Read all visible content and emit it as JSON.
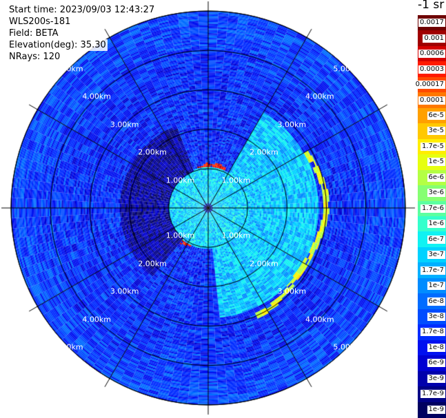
{
  "info": {
    "start_time": "Start time: 2023/09/03 12:43:27",
    "instrument": "WLS200s-181",
    "field": "Field: BETA",
    "elevation": "Elevation(deg): 35.30",
    "nrays": "NRays: 120"
  },
  "colorbar": {
    "unit": "-1 sr",
    "labels": [
      "0.0017",
      "0.001",
      "0.0006",
      "0.0003",
      "0.00017",
      "0.0001",
      "6e-5",
      "3e-5",
      "1.7e-5",
      "1e-5",
      "6e-6",
      "3e-6",
      "1.7e-6",
      "1e-6",
      "6e-7",
      "3e-7",
      "1.7e-7",
      "1e-7",
      "6e-8",
      "3e-8",
      "1.7e-8",
      "1e-8",
      "6e-9",
      "3e-9",
      "1.7e-9",
      "1e-9"
    ],
    "colors": [
      "#6e0000",
      "#a00000",
      "#d40000",
      "#ff1a00",
      "#ff4a00",
      "#ff7800",
      "#ffa000",
      "#ffc800",
      "#ffee00",
      "#e6ff10",
      "#b4ff44",
      "#86ff72",
      "#5cffa0",
      "#34ffcc",
      "#10f2f2",
      "#00d2ff",
      "#00b0ff",
      "#008cff",
      "#006cff",
      "#004cff",
      "#002cff",
      "#0010f0",
      "#0000d2",
      "#0000ac",
      "#000086",
      "#000060"
    ]
  },
  "chart_data": {
    "type": "heatmap",
    "projection": "polar",
    "field": "BETA",
    "elevation_deg": 35.3,
    "nrays": 120,
    "range_rings": [
      {
        "range_km": 1.0,
        "label": "1.00km"
      },
      {
        "range_km": 2.0,
        "label": "2.00km"
      },
      {
        "range_km": 3.0,
        "label": "3.00km"
      },
      {
        "range_km": 4.0,
        "label": "4.00km"
      },
      {
        "range_km": 5.0,
        "label": "5.00km"
      }
    ],
    "max_range_km": 5.0,
    "azimuth_spokes_deg": [
      0,
      30,
      60,
      90,
      120,
      150,
      180,
      210,
      240,
      270,
      300,
      330
    ],
    "gate_spacing_km": 0.04,
    "background_log_beta": -7.8,
    "features": [
      {
        "name": "aerosol-ring",
        "range_km": 1.0,
        "azimuth_from_deg": 200,
        "azimuth_to_deg": 385,
        "log_beta": -3.4
      },
      {
        "name": "east-plume",
        "range_from_km": 1.0,
        "range_to_km": 2.8,
        "azimuth_from_deg": 30,
        "azimuth_to_deg": 175,
        "log_beta": -6.6
      },
      {
        "name": "east-plume-edge",
        "range_km": 2.9,
        "azimuth_from_deg": 60,
        "azimuth_to_deg": 155,
        "log_beta": -5.0
      },
      {
        "name": "inner-core",
        "range_from_km": 0.1,
        "range_to_km": 1.0,
        "azimuth_from_deg": 0,
        "azimuth_to_deg": 360,
        "log_beta": -6.5
      },
      {
        "name": "dark-sector",
        "range_from_km": 1.0,
        "range_to_km": 2.2,
        "azimuth_from_deg": 220,
        "azimuth_to_deg": 340,
        "log_beta": -8.6
      }
    ]
  }
}
